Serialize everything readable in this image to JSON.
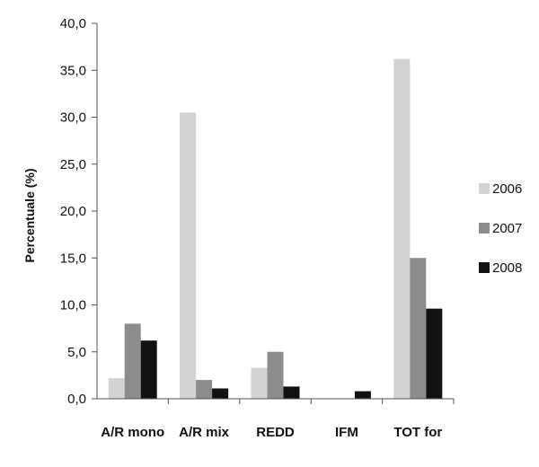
{
  "chart_data": {
    "type": "bar",
    "title": "",
    "xlabel": "",
    "ylabel": "Percentuale (%)",
    "ylim": [
      0,
      40
    ],
    "ytick_step": 5,
    "ytick_labels": [
      "0,0",
      "5,0",
      "10,0",
      "15,0",
      "20,0",
      "25,0",
      "30,0",
      "35,0",
      "40,0"
    ],
    "grid": false,
    "legend_position": "right",
    "categories": [
      "A/R mono",
      "A/R mix",
      "REDD",
      "IFM",
      "TOT for"
    ],
    "series": [
      {
        "name": "2006",
        "color": "#d3d3d3",
        "values": [
          2.2,
          30.5,
          3.3,
          0.0,
          36.2
        ]
      },
      {
        "name": "2007",
        "color": "#8c8c8c",
        "values": [
          8.0,
          2.0,
          5.0,
          0.0,
          15.0
        ]
      },
      {
        "name": "2008",
        "color": "#111111",
        "values": [
          6.2,
          1.1,
          1.3,
          0.8,
          9.6
        ]
      }
    ]
  }
}
